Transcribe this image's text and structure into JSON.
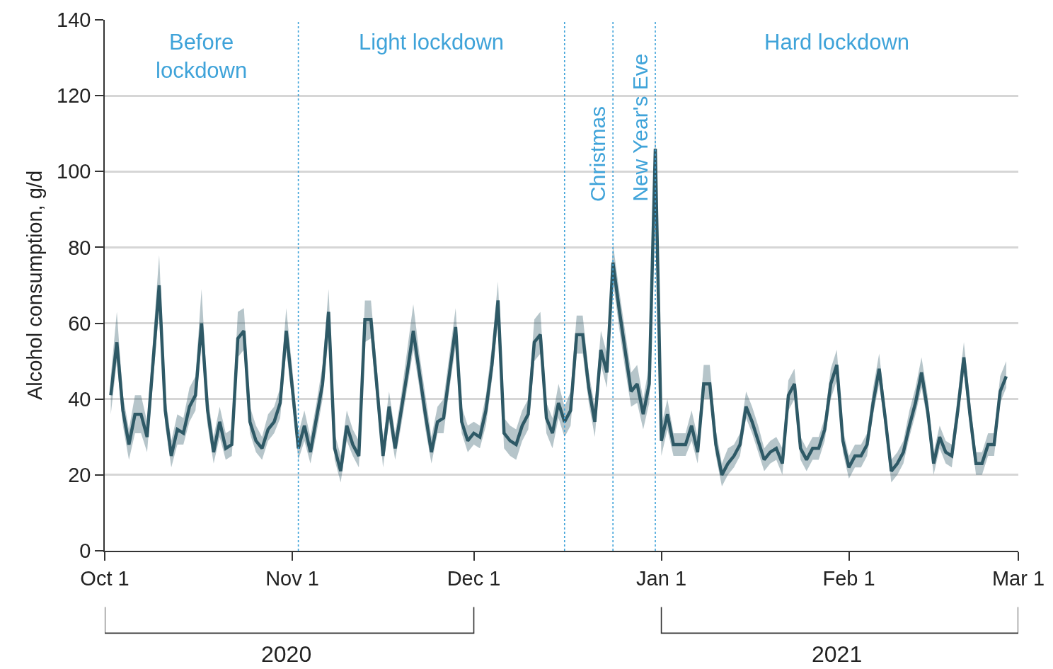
{
  "chart_data": {
    "type": "line",
    "ylabel": "Alcohol consumption, g/d",
    "x": [
      "2020-10-02",
      "2020-10-03",
      "2020-10-04",
      "2020-10-05",
      "2020-10-06",
      "2020-10-07",
      "2020-10-08",
      "2020-10-09",
      "2020-10-10",
      "2020-10-11",
      "2020-10-12",
      "2020-10-13",
      "2020-10-14",
      "2020-10-15",
      "2020-10-16",
      "2020-10-17",
      "2020-10-18",
      "2020-10-19",
      "2020-10-20",
      "2020-10-21",
      "2020-10-22",
      "2020-10-23",
      "2020-10-24",
      "2020-10-25",
      "2020-10-26",
      "2020-10-27",
      "2020-10-28",
      "2020-10-29",
      "2020-10-30",
      "2020-10-31",
      "2020-11-01",
      "2020-11-02",
      "2020-11-03",
      "2020-11-04",
      "2020-11-05",
      "2020-11-06",
      "2020-11-07",
      "2020-11-08",
      "2020-11-09",
      "2020-11-10",
      "2020-11-11",
      "2020-11-12",
      "2020-11-13",
      "2020-11-14",
      "2020-11-15",
      "2020-11-16",
      "2020-11-17",
      "2020-11-18",
      "2020-11-19",
      "2020-11-20",
      "2020-11-21",
      "2020-11-22",
      "2020-11-23",
      "2020-11-24",
      "2020-11-25",
      "2020-11-26",
      "2020-11-27",
      "2020-11-28",
      "2020-11-29",
      "2020-11-30",
      "2020-12-01",
      "2020-12-02",
      "2020-12-03",
      "2020-12-04",
      "2020-12-05",
      "2020-12-06",
      "2020-12-07",
      "2020-12-08",
      "2020-12-09",
      "2020-12-10",
      "2020-12-11",
      "2020-12-12",
      "2020-12-13",
      "2020-12-14",
      "2020-12-15",
      "2020-12-16",
      "2020-12-17",
      "2020-12-18",
      "2020-12-19",
      "2020-12-20",
      "2020-12-21",
      "2020-12-22",
      "2020-12-23",
      "2020-12-24",
      "2020-12-25",
      "2020-12-26",
      "2020-12-27",
      "2020-12-28",
      "2020-12-29",
      "2020-12-30",
      "2020-12-31",
      "2021-01-01",
      "2021-01-02",
      "2021-01-03",
      "2021-01-04",
      "2021-01-05",
      "2021-01-06",
      "2021-01-07",
      "2021-01-08",
      "2021-01-09",
      "2021-01-10",
      "2021-01-11",
      "2021-01-12",
      "2021-01-13",
      "2021-01-14",
      "2021-01-15",
      "2021-01-16",
      "2021-01-17",
      "2021-01-18",
      "2021-01-19",
      "2021-01-20",
      "2021-01-21",
      "2021-01-22",
      "2021-01-23",
      "2021-01-24",
      "2021-01-25",
      "2021-01-26",
      "2021-01-27",
      "2021-01-28",
      "2021-01-29",
      "2021-01-30",
      "2021-01-31",
      "2021-02-01",
      "2021-02-02",
      "2021-02-03",
      "2021-02-04",
      "2021-02-05",
      "2021-02-06",
      "2021-02-07",
      "2021-02-08",
      "2021-02-09",
      "2021-02-10",
      "2021-02-11",
      "2021-02-12",
      "2021-02-13",
      "2021-02-14",
      "2021-02-15",
      "2021-02-16",
      "2021-02-17",
      "2021-02-18",
      "2021-02-19",
      "2021-02-20",
      "2021-02-21",
      "2021-02-22",
      "2021-02-23",
      "2021-02-24",
      "2021-02-25",
      "2021-02-26",
      "2021-02-27"
    ],
    "series": [
      {
        "color": "#2e5966",
        "values": [
          41,
          55,
          37,
          28,
          36,
          36,
          30,
          50,
          70,
          37,
          25,
          32,
          31,
          38,
          41,
          60,
          37,
          26,
          34,
          27,
          28,
          56,
          58,
          34,
          29,
          27,
          32,
          34,
          39,
          58,
          43,
          27,
          33,
          26,
          35,
          44,
          63,
          27,
          21,
          33,
          28,
          25,
          61,
          61,
          43,
          25,
          38,
          27,
          37,
          47,
          58,
          47,
          36,
          26,
          34,
          35,
          47,
          59,
          34,
          29,
          31,
          30,
          37,
          49,
          66,
          31,
          29,
          28,
          33,
          36,
          55,
          57,
          35,
          31,
          39,
          34,
          37,
          57,
          57,
          43,
          34,
          53,
          47,
          76,
          64,
          53,
          42,
          44,
          36,
          44,
          106,
          29,
          36,
          28,
          28,
          28,
          33,
          26,
          44,
          44,
          28,
          20,
          23,
          25,
          28,
          38,
          34,
          29,
          24,
          26,
          27,
          23,
          41,
          44,
          27,
          24,
          27,
          27,
          32,
          44,
          49,
          29,
          22,
          25,
          25,
          28,
          39,
          48,
          35,
          21,
          23,
          26,
          33,
          39,
          47,
          37,
          23,
          30,
          26,
          25,
          37,
          51,
          36,
          23,
          23,
          28,
          28,
          42,
          46
        ],
        "lower": [
          36,
          50,
          33,
          24,
          31,
          31,
          26,
          45,
          64,
          33,
          22,
          28,
          28,
          34,
          37,
          55,
          33,
          23,
          30,
          24,
          25,
          51,
          53,
          31,
          26,
          24,
          29,
          31,
          35,
          53,
          39,
          24,
          29,
          23,
          31,
          40,
          57,
          24,
          18,
          29,
          25,
          22,
          55,
          56,
          39,
          22,
          34,
          24,
          33,
          43,
          53,
          43,
          32,
          23,
          31,
          31,
          43,
          54,
          31,
          26,
          28,
          27,
          33,
          45,
          61,
          27,
          25,
          24,
          29,
          32,
          50,
          52,
          31,
          27,
          35,
          30,
          33,
          52,
          52,
          39,
          30,
          49,
          43,
          71,
          59,
          48,
          38,
          39,
          32,
          39,
          97,
          25,
          32,
          25,
          25,
          25,
          29,
          23,
          40,
          40,
          25,
          17,
          20,
          22,
          25,
          35,
          31,
          26,
          21,
          23,
          24,
          20,
          37,
          40,
          24,
          21,
          24,
          24,
          29,
          40,
          45,
          26,
          19,
          22,
          22,
          25,
          36,
          44,
          32,
          18,
          20,
          23,
          30,
          36,
          43,
          34,
          20,
          27,
          23,
          22,
          34,
          47,
          33,
          20,
          20,
          25,
          25,
          39,
          43
        ],
        "upper": [
          46,
          63,
          41,
          32,
          41,
          41,
          34,
          56,
          78,
          41,
          29,
          36,
          35,
          43,
          46,
          69,
          41,
          30,
          38,
          31,
          32,
          63,
          64,
          38,
          33,
          30,
          36,
          38,
          43,
          64,
          48,
          31,
          37,
          30,
          39,
          49,
          69,
          31,
          25,
          37,
          32,
          29,
          66,
          66,
          48,
          29,
          42,
          31,
          41,
          53,
          65,
          52,
          41,
          30,
          38,
          40,
          52,
          64,
          38,
          33,
          34,
          33,
          41,
          54,
          71,
          35,
          33,
          32,
          37,
          40,
          61,
          63,
          39,
          35,
          44,
          38,
          42,
          62,
          62,
          47,
          38,
          58,
          52,
          81,
          69,
          58,
          47,
          49,
          40,
          49,
          112,
          33,
          40,
          31,
          31,
          31,
          37,
          30,
          49,
          49,
          32,
          23,
          27,
          28,
          31,
          42,
          38,
          33,
          27,
          29,
          30,
          27,
          45,
          48,
          30,
          27,
          30,
          30,
          35,
          48,
          53,
          32,
          25,
          28,
          28,
          31,
          43,
          52,
          38,
          24,
          26,
          29,
          37,
          43,
          51,
          41,
          26,
          33,
          29,
          28,
          41,
          55,
          40,
          26,
          26,
          31,
          31,
          46,
          50
        ]
      }
    ],
    "xlim": [
      "2020-10-01",
      "2021-03-01"
    ],
    "xticks": [
      {
        "value": "2020-10-01",
        "label": "Oct 1"
      },
      {
        "value": "2020-11-01",
        "label": "Nov 1"
      },
      {
        "value": "2020-12-01",
        "label": "Dec 1"
      },
      {
        "value": "2021-01-01",
        "label": "Jan 1"
      },
      {
        "value": "2021-02-01",
        "label": "Feb 1"
      },
      {
        "value": "2021-03-01",
        "label": "Mar 1"
      }
    ],
    "ylim": [
      0,
      140
    ],
    "yticks": [
      0,
      20,
      40,
      60,
      80,
      100,
      120,
      140
    ],
    "grid": "y",
    "ref_lines": [
      {
        "axis": "x",
        "value": "2020-11-02",
        "color": "#3fa3d9",
        "line_style": "dotted"
      },
      {
        "axis": "x",
        "value": "2020-12-16",
        "color": "#3fa3d9",
        "line_style": "dotted"
      },
      {
        "axis": "x",
        "value": "2020-12-24",
        "label": "Christmas",
        "color": "#3fa3d9",
        "line_style": "dotted"
      },
      {
        "axis": "x",
        "value": "2020-12-31",
        "label": "New Year's Eve",
        "color": "#3fa3d9",
        "line_style": "dotted"
      }
    ],
    "annotations": [
      "Before\nlockdown",
      "Light lockdown",
      "Hard lockdown",
      "2020",
      "2021"
    ]
  }
}
